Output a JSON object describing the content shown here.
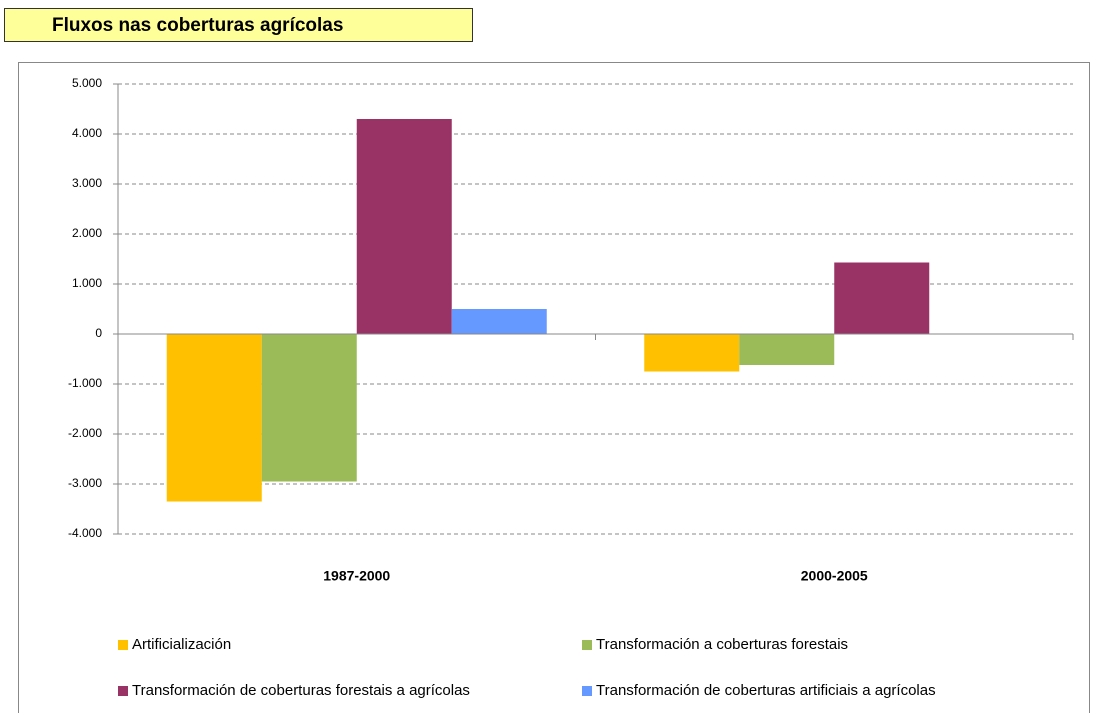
{
  "chart_data": {
    "type": "bar",
    "title": "Fluxos nas coberturas agrícolas",
    "categories": [
      "1987-2000",
      "2000-2005"
    ],
    "series": [
      {
        "name": "Artificialización",
        "color": "#ffc000",
        "values": [
          -3350,
          -750
        ]
      },
      {
        "name": "Transformación a coberturas forestais",
        "color": "#9bbb59",
        "values": [
          -2950,
          -620
        ]
      },
      {
        "name": "Transformación de coberturas forestais a agrícolas",
        "color": "#993366",
        "values": [
          4300,
          1430
        ]
      },
      {
        "name": "Transformación de coberturas artificiais a agrícolas",
        "color": "#6699ff",
        "values": [
          500,
          0
        ]
      }
    ],
    "ylim": [
      -4000,
      5000
    ],
    "yticks": [
      {
        "value": -4000,
        "label": "-4.000"
      },
      {
        "value": -3000,
        "label": "-3.000"
      },
      {
        "value": -2000,
        "label": "-2.000"
      },
      {
        "value": -1000,
        "label": "-1.000"
      },
      0,
      {
        "value": 1000,
        "label": "1.000"
      },
      {
        "value": 2000,
        "label": "2.000"
      },
      {
        "value": 3000,
        "label": "3.000"
      },
      {
        "value": 4000,
        "label": "4.000"
      },
      {
        "value": 5000,
        "label": "5.000"
      }
    ],
    "grid": true,
    "legend": "bottom"
  }
}
